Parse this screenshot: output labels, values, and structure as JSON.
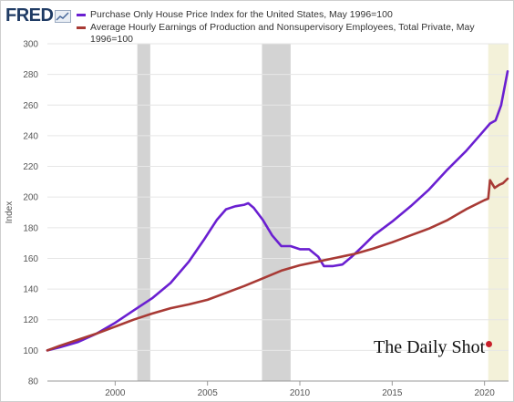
{
  "header": {
    "logo_text": "FRED",
    "logo_icon": "chart-line-icon"
  },
  "watermark": {
    "text": "The Daily Shot"
  },
  "colors": {
    "series_house": "#6a1fd1",
    "series_earnings": "#a83a35",
    "recession": "#d3d3d3",
    "highlight": "#f3f1d9",
    "grid": "#e6e6e6",
    "axis_text": "#555555"
  },
  "chart_data": {
    "type": "line",
    "ylabel": "Index",
    "xlabel": "",
    "ylim": [
      80,
      300
    ],
    "xlim": [
      1996.33,
      2021.3
    ],
    "y_ticks": [
      80,
      100,
      120,
      140,
      160,
      180,
      200,
      220,
      240,
      260,
      280,
      300
    ],
    "x_ticks": [
      2000,
      2005,
      2010,
      2015,
      2020
    ],
    "x_tick_labels": [
      "2000",
      "2005",
      "2010",
      "2015",
      "2020"
    ],
    "grid": true,
    "legend_position": "top",
    "recession_shading": [
      [
        2001.2,
        2001.9
      ],
      [
        2007.95,
        2009.5
      ]
    ],
    "highlight_band": [
      2020.2,
      2021.3
    ],
    "series": [
      {
        "name": "Purchase Only House Price Index for the United States, May 1996=100",
        "color": "#6a1fd1",
        "points": [
          [
            1996.33,
            100
          ],
          [
            1997.0,
            102
          ],
          [
            1998.0,
            105.5
          ],
          [
            1999.0,
            111
          ],
          [
            2000.0,
            118
          ],
          [
            2001.0,
            126
          ],
          [
            2002.0,
            134
          ],
          [
            2003.0,
            144
          ],
          [
            2004.0,
            158
          ],
          [
            2004.8,
            172
          ],
          [
            2005.5,
            185
          ],
          [
            2006.0,
            192
          ],
          [
            2006.5,
            194
          ],
          [
            2007.0,
            195
          ],
          [
            2007.2,
            196
          ],
          [
            2007.5,
            193
          ],
          [
            2008.0,
            185
          ],
          [
            2008.5,
            175
          ],
          [
            2009.0,
            168
          ],
          [
            2009.5,
            168
          ],
          [
            2010.0,
            166
          ],
          [
            2010.5,
            166
          ],
          [
            2011.0,
            161
          ],
          [
            2011.3,
            155
          ],
          [
            2011.8,
            155
          ],
          [
            2012.3,
            156
          ],
          [
            2012.8,
            161
          ],
          [
            2013.5,
            169
          ],
          [
            2014.0,
            175
          ],
          [
            2015.0,
            184
          ],
          [
            2016.0,
            194
          ],
          [
            2017.0,
            205
          ],
          [
            2018.0,
            218
          ],
          [
            2019.0,
            230
          ],
          [
            2019.8,
            241
          ],
          [
            2020.3,
            248
          ],
          [
            2020.6,
            250
          ],
          [
            2020.9,
            260
          ],
          [
            2021.25,
            282
          ]
        ]
      },
      {
        "name": "Average Hourly Earnings of Production and Nonsupervisory Employees, Total Private, May 1996=100",
        "color": "#a83a35",
        "points": [
          [
            1996.33,
            100
          ],
          [
            1997.0,
            103
          ],
          [
            1998.0,
            107
          ],
          [
            1999.0,
            111
          ],
          [
            2000.0,
            115.5
          ],
          [
            2001.0,
            120
          ],
          [
            2002.0,
            124
          ],
          [
            2003.0,
            127.5
          ],
          [
            2004.0,
            130
          ],
          [
            2005.0,
            133
          ],
          [
            2006.0,
            137.5
          ],
          [
            2007.0,
            142
          ],
          [
            2008.0,
            147
          ],
          [
            2009.0,
            152
          ],
          [
            2010.0,
            155.5
          ],
          [
            2011.0,
            158
          ],
          [
            2012.0,
            160.5
          ],
          [
            2013.0,
            163
          ],
          [
            2014.0,
            166.5
          ],
          [
            2015.0,
            170.5
          ],
          [
            2016.0,
            175
          ],
          [
            2017.0,
            179.5
          ],
          [
            2018.0,
            185
          ],
          [
            2019.0,
            192
          ],
          [
            2020.0,
            198
          ],
          [
            2020.2,
            199
          ],
          [
            2020.3,
            211
          ],
          [
            2020.55,
            206
          ],
          [
            2020.8,
            208
          ],
          [
            2021.0,
            209
          ],
          [
            2021.25,
            212
          ]
        ]
      }
    ]
  }
}
